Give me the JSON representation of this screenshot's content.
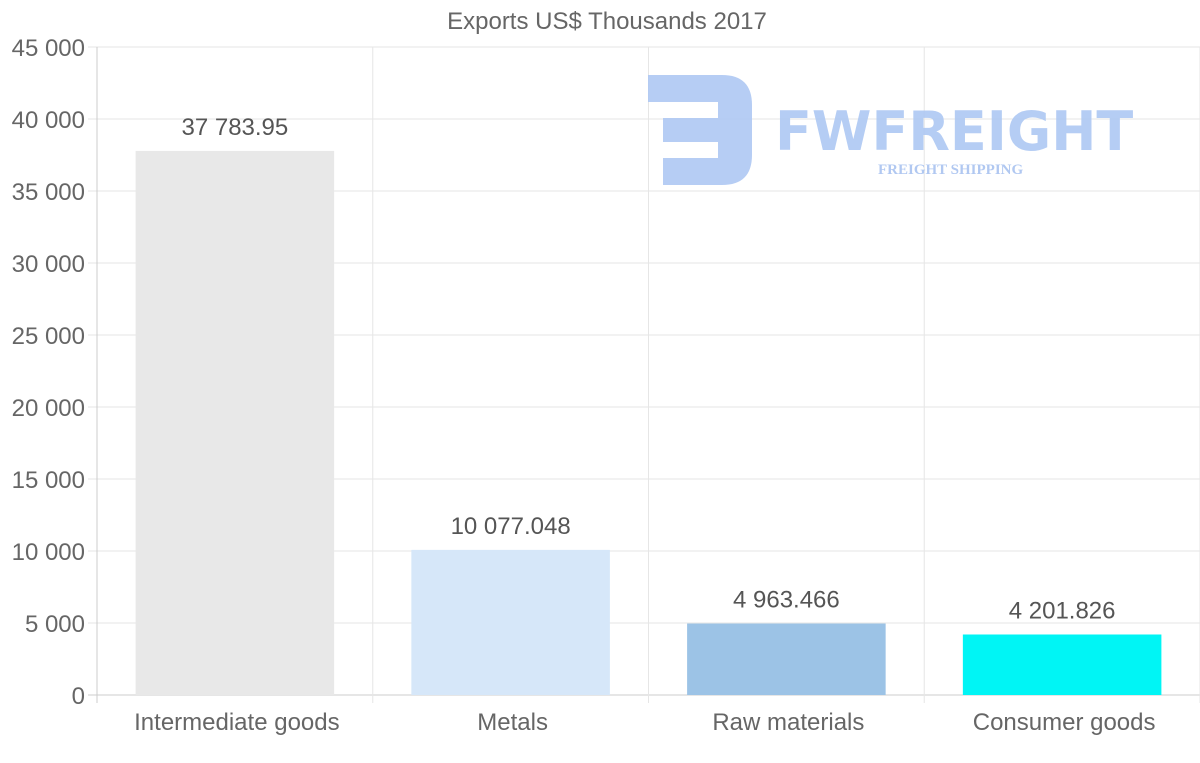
{
  "chart_data": {
    "type": "bar",
    "title": "Exports US$ Thousands 2017",
    "categories": [
      "Intermediate goods",
      "Metals",
      "Raw materials",
      "Consumer goods"
    ],
    "values": [
      37783.95,
      10077.048,
      4963.466,
      4201.826
    ],
    "value_labels": [
      "37 783.95",
      "10 077.048",
      "4 963.466",
      "4 201.826"
    ],
    "bar_colors": [
      "#e8e8e8",
      "#d6e7f9",
      "#9cc3e6",
      "#00f5f5"
    ],
    "yticks": [
      0,
      5000,
      10000,
      15000,
      20000,
      25000,
      30000,
      35000,
      40000,
      45000
    ],
    "ytick_labels": [
      "0",
      "5 000",
      "10 000",
      "15 000",
      "20 000",
      "25 000",
      "30 000",
      "35 000",
      "40 000",
      "45 000"
    ],
    "ylim": [
      0,
      45000
    ],
    "xlabel": "",
    "ylabel": "",
    "grid": true,
    "legend": false
  },
  "watermark": {
    "name": "FWFREIGHT",
    "tagline": "FREIGHT SHIPPING",
    "color": "#aec8f3"
  }
}
